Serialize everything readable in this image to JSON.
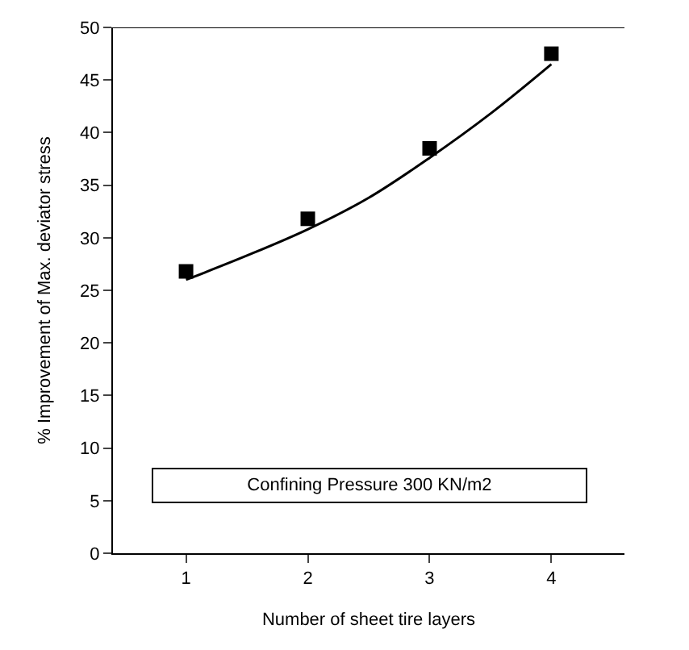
{
  "chart_data": {
    "type": "scatter",
    "xlabel": "Number of sheet tire layers",
    "ylabel": "% Improvement of Max. deviator stress",
    "annotations": [
      "Confining Pressure 300 KN/m2"
    ],
    "x": [
      1,
      2,
      3,
      4
    ],
    "series": [
      {
        "color": "#000000",
        "marker": "square",
        "values": [
          26.8,
          31.8,
          38.5,
          47.5
        ]
      },
      {
        "type": "line",
        "color": "#000000",
        "marker": "none",
        "x": [
          1,
          1.5,
          2,
          2.5,
          3,
          3.5,
          4
        ],
        "values": [
          26,
          28.3,
          30.8,
          33.8,
          37.6,
          41.8,
          46.5
        ]
      }
    ],
    "xlim": [
      0.4,
      4.6
    ],
    "xticks": [
      1,
      2,
      3,
      4
    ],
    "ylim": [
      0,
      50
    ],
    "yticks": [
      0,
      5,
      10,
      15,
      20,
      25,
      30,
      35,
      40,
      45,
      50
    ],
    "legend": false
  }
}
